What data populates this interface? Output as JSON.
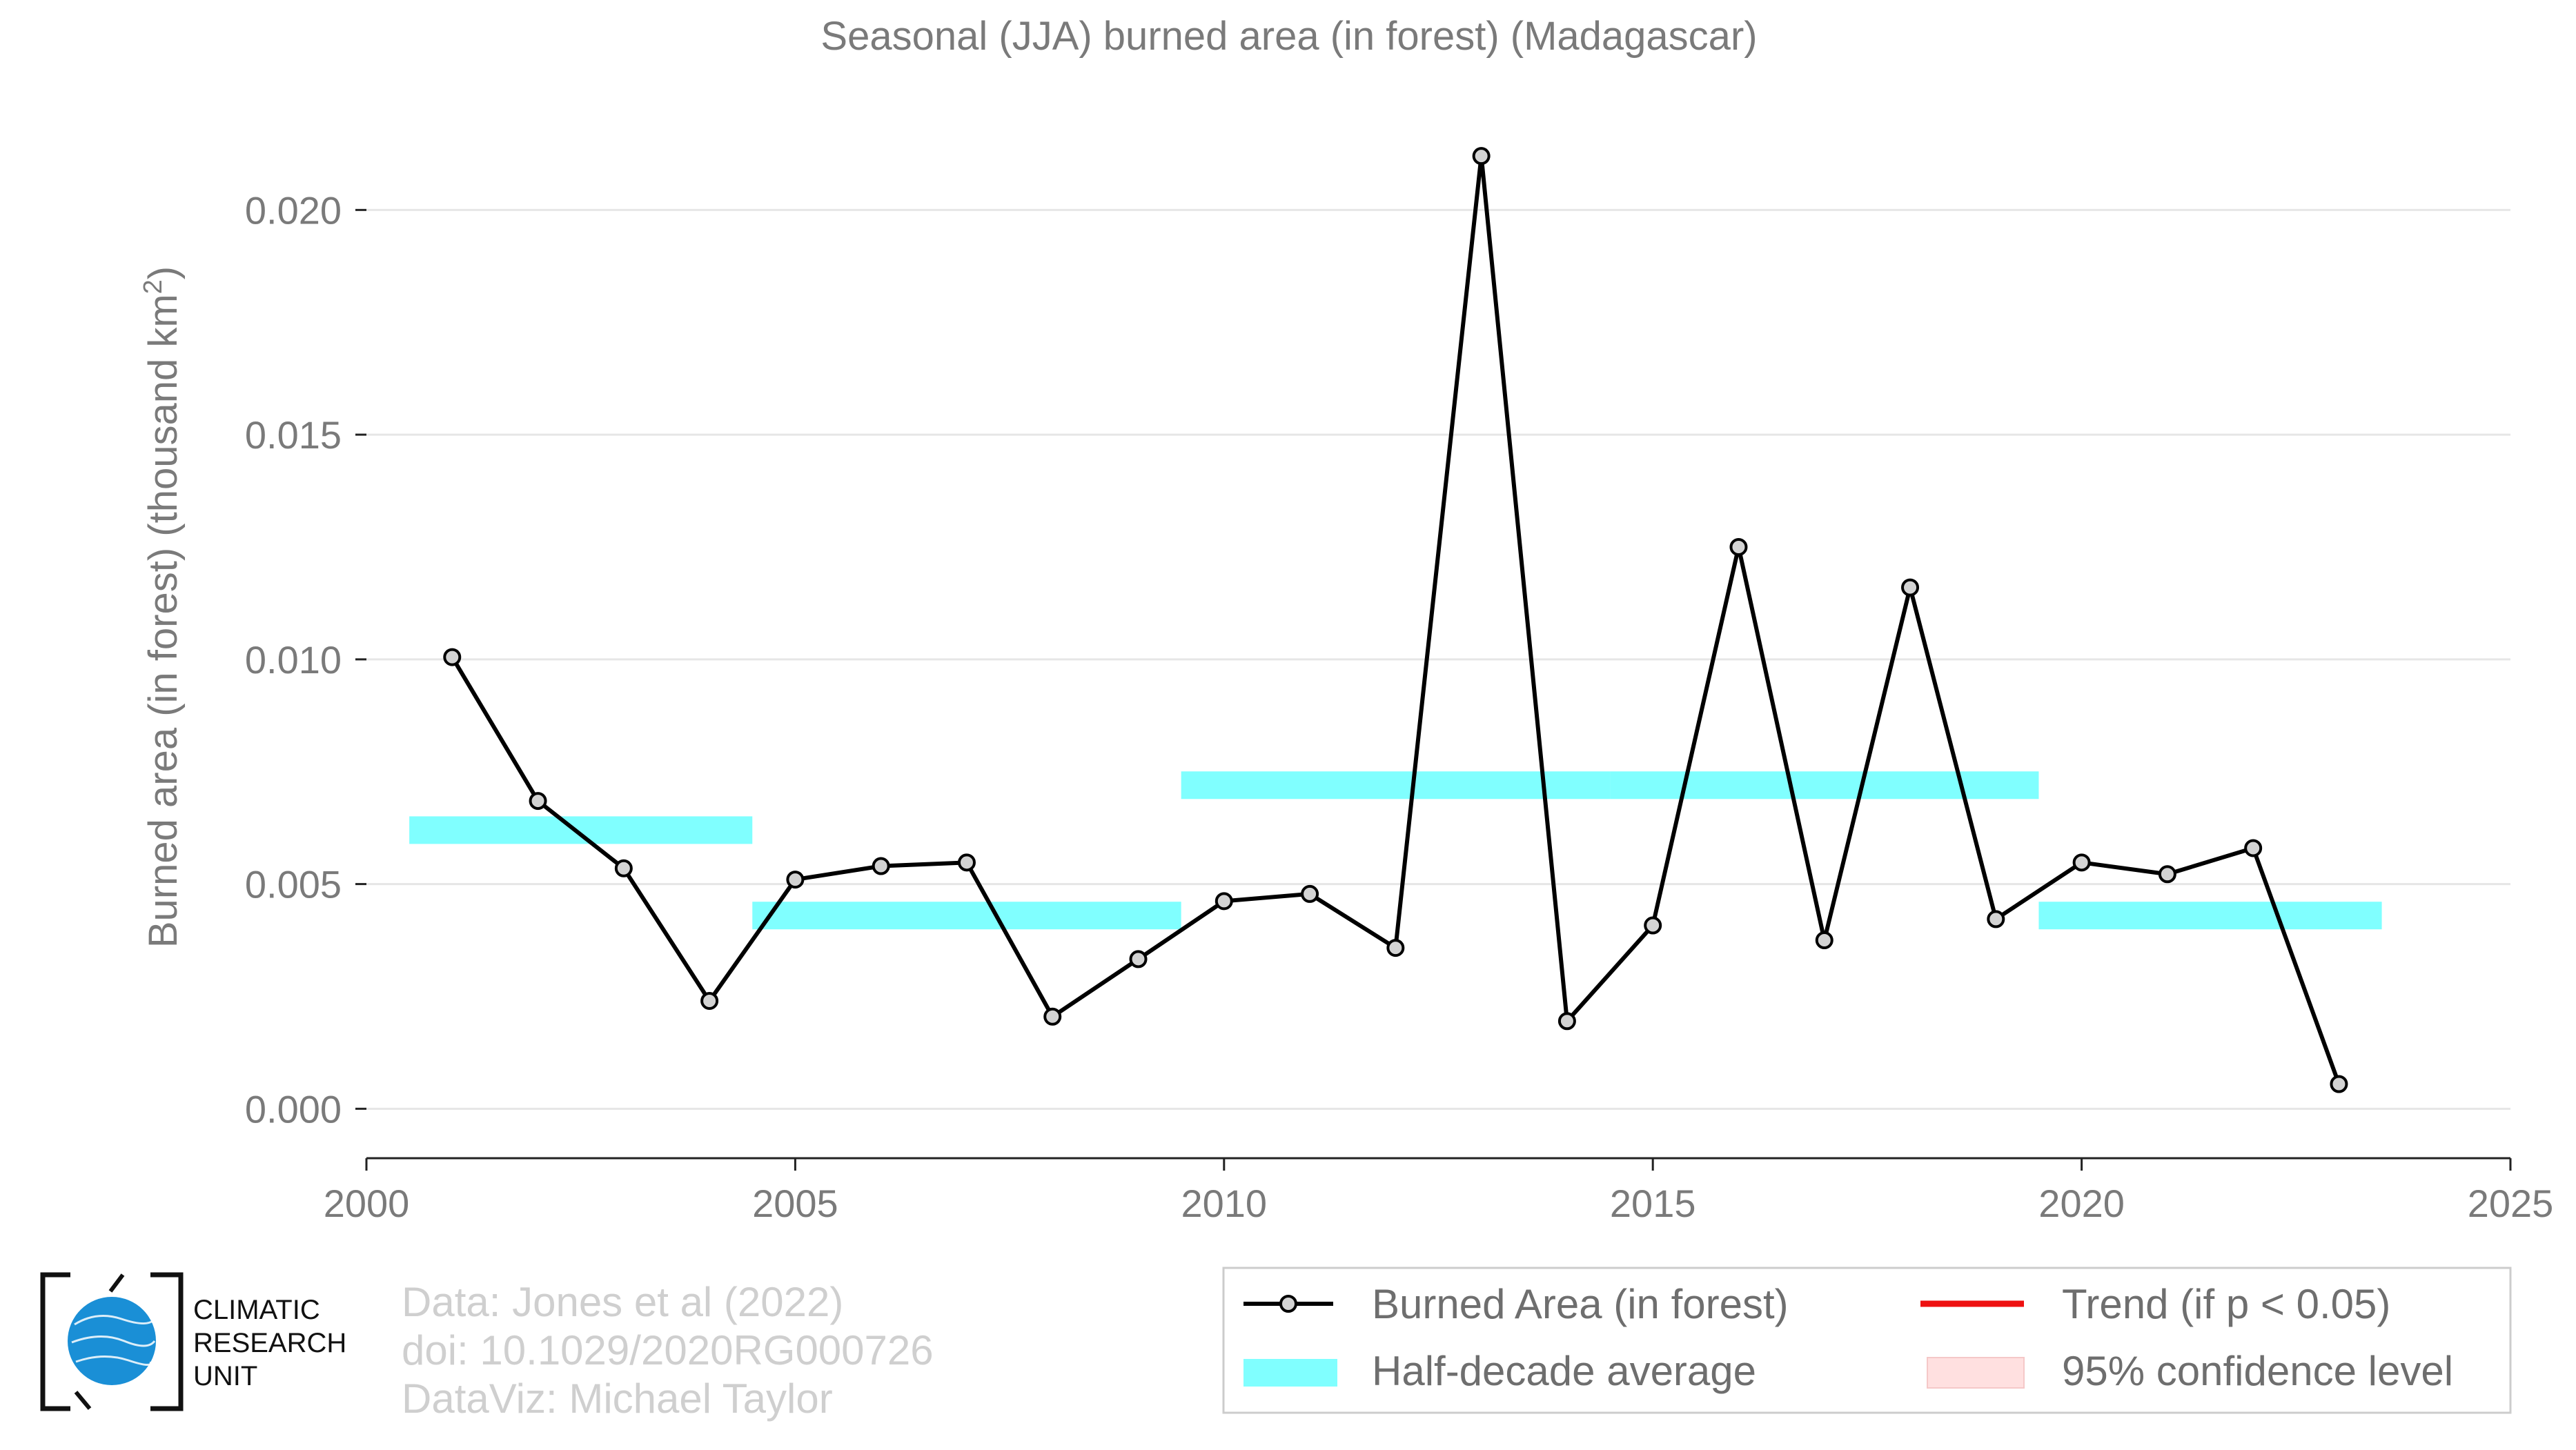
{
  "chart_data": {
    "type": "line",
    "title": "Seasonal (JJA) burned area (in forest) (Madagascar)",
    "ylabel_main": "Burned area (in forest) (thousand km",
    "ylabel_sup": "2",
    "ylabel_close": ")",
    "xlim": [
      2000,
      2025
    ],
    "ylim": [
      -0.0011,
      0.0224
    ],
    "x_ticks": [
      2000,
      2005,
      2010,
      2015,
      2020,
      2025
    ],
    "x_tick_labels": [
      "2000",
      "2005",
      "2010",
      "2015",
      "2020",
      "2025"
    ],
    "y_ticks": [
      0,
      0.005,
      0.01,
      0.015,
      0.02
    ],
    "y_tick_labels": [
      "0.000",
      "0.005",
      "0.010",
      "0.015",
      "0.020"
    ],
    "grid": "horizontal",
    "series": [
      {
        "name": "Burned Area (in forest)",
        "color": "#000000",
        "marker_fill": "#d3d3d3",
        "x": [
          2001,
          2002,
          2003,
          2004,
          2005,
          2006,
          2007,
          2008,
          2009,
          2010,
          2011,
          2012,
          2013,
          2014,
          2015,
          2016,
          2017,
          2018,
          2019,
          2020,
          2021,
          2022,
          2023
        ],
        "y": [
          0.01005,
          0.00685,
          0.00535,
          0.0024,
          0.0051,
          0.0054,
          0.00548,
          0.00205,
          0.00333,
          0.00462,
          0.00478,
          0.00358,
          0.0212,
          0.00195,
          0.00408,
          0.0125,
          0.00375,
          0.0116,
          0.00422,
          0.00548,
          0.00522,
          0.0058,
          0.00055
        ]
      }
    ],
    "half_decade_averages": {
      "name": "Half-decade average",
      "color": "#80ffff",
      "segments": [
        {
          "x_start": 2000.5,
          "x_end": 2004.5,
          "value": 0.0062
        },
        {
          "x_start": 2004.5,
          "x_end": 2009.5,
          "value": 0.0043
        },
        {
          "x_start": 2009.5,
          "x_end": 2014.5,
          "value": 0.0072
        },
        {
          "x_start": 2014.5,
          "x_end": 2019.5,
          "value": 0.0072
        },
        {
          "x_start": 2019.5,
          "x_end": 2023.5,
          "value": 0.0043
        }
      ]
    },
    "legend": {
      "placement": "bottom-right",
      "items": [
        {
          "key": "line",
          "label": "Burned Area (in forest)",
          "color": "#000000"
        },
        {
          "key": "trend",
          "label": "Trend (if p < 0.05)",
          "color": "#ee1111"
        },
        {
          "key": "band",
          "label": "Half-decade average",
          "color": "#80ffff"
        },
        {
          "key": "ci",
          "label": "95% confidence level",
          "color": "#ffe0e0"
        }
      ]
    }
  },
  "credits": {
    "line1": "Data: Jones et al (2022)",
    "line2": "doi: 10.1029/2020RG000726",
    "line3": "DataViz: Michael Taylor"
  },
  "logo": {
    "line1": "CLIMATIC",
    "line2": "RESEARCH",
    "line3": "UNIT",
    "globe_color": "#1a8fd6"
  }
}
